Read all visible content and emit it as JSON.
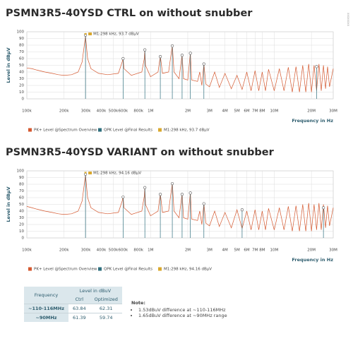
{
  "side_label": "xxxxxxxx",
  "chart_data": [
    {
      "type": "line",
      "title": "PSMN3R5-40YSD CTRL on without snubber",
      "x_label": "Frequency in Hz",
      "y_label": "Level in dBµV",
      "log_x": true,
      "grid": true,
      "xlim": [
        100000,
        30000000
      ],
      "xticks": [
        {
          "value": 100000,
          "label": "100k"
        },
        {
          "value": 200000,
          "label": "200k"
        },
        {
          "value": 300000,
          "label": "300k"
        },
        {
          "value": 400000,
          "label": "400k"
        },
        {
          "value": 500000,
          "label": "500k"
        },
        {
          "value": 600000,
          "label": "600k"
        },
        {
          "value": 800000,
          "label": "800k"
        },
        {
          "value": 1000000,
          "label": "1M"
        },
        {
          "value": 2000000,
          "label": "2M"
        },
        {
          "value": 3000000,
          "label": "3M"
        },
        {
          "value": 4000000,
          "label": "4M"
        },
        {
          "value": 5000000,
          "label": "5M"
        },
        {
          "value": 6000000,
          "label": "6M"
        },
        {
          "value": 7000000,
          "label": "7M"
        },
        {
          "value": 8000000,
          "label": "8M"
        },
        {
          "value": 10000000,
          "label": "10M"
        },
        {
          "value": 20000000,
          "label": "20M"
        },
        {
          "value": 30000000,
          "label": "30M"
        }
      ],
      "ylim": [
        0,
        100
      ],
      "yticks": [
        0,
        10,
        20,
        30,
        40,
        50,
        60,
        70,
        80,
        90,
        100
      ],
      "series": [
        {
          "name": "PK+ Level @Spectrum Overview",
          "color": "#d4582f",
          "kind": "line",
          "x": [
            100000,
            110000,
            120000,
            140000,
            160000,
            180000,
            200000,
            230000,
            260000,
            280000,
            298000,
            310000,
            330000,
            380000,
            450000,
            550000,
            590000,
            600000,
            610000,
            700000,
            850000,
            890000,
            900000,
            910000,
            1000000,
            1150000,
            1200000,
            1250000,
            1400000,
            1500000,
            1550000,
            1700000,
            1800000,
            1850000,
            2000000,
            2100000,
            2150000,
            2400000,
            2500000,
            2600000,
            2700000,
            2800000,
            3000000,
            3300000,
            3600000,
            4000000,
            4500000,
            5000000,
            5500000,
            6000000,
            6500000,
            7000000,
            7500000,
            8000000,
            8500000,
            9000000,
            10000000,
            11000000,
            12000000,
            13000000,
            14000000,
            15000000,
            16000000,
            17000000,
            18000000,
            19000000,
            20000000,
            21000000,
            22000000,
            23000000,
            24000000,
            25000000,
            26000000,
            27000000,
            28000000,
            30000000
          ],
          "values": [
            46,
            45,
            43,
            40,
            38,
            36,
            35,
            36,
            40,
            55,
            93.7,
            60,
            45,
            38,
            36,
            38,
            55,
            62,
            45,
            35,
            40,
            60,
            74,
            50,
            33,
            40,
            64,
            38,
            40,
            80,
            40,
            30,
            66,
            30,
            28,
            69,
            28,
            26,
            40,
            20,
            52,
            22,
            18,
            40,
            17,
            38,
            15,
            35,
            14,
            40,
            12,
            42,
            12,
            40,
            12,
            44,
            12,
            45,
            12,
            47,
            10,
            48,
            10,
            50,
            10,
            52,
            10,
            50,
            12,
            52,
            12,
            50,
            15,
            48,
            18,
            45
          ]
        },
        {
          "name": "QPK Level @Final Results",
          "color": "#2e6f7e",
          "kind": "points",
          "x": [
            298000,
            600000,
            900000,
            1200000,
            1500000,
            1800000,
            2100000,
            2700000,
            22000000
          ],
          "values": [
            95,
            60,
            73,
            63,
            79,
            65,
            68,
            52,
            48
          ]
        }
      ],
      "marker": {
        "label": "M1:298 kHz, 93.7 dBµV",
        "color": "#d9a82e",
        "x": 298000,
        "y": 93.7
      }
    },
    {
      "type": "line",
      "title": "PSMN3R5-40YSD VARIANT on without snubber",
      "x_label": "Frequency in Hz",
      "y_label": "Level in dBµV",
      "log_x": true,
      "grid": true,
      "xlim": [
        100000,
        30000000
      ],
      "xticks": [
        {
          "value": 100000,
          "label": "100k"
        },
        {
          "value": 200000,
          "label": "200k"
        },
        {
          "value": 300000,
          "label": "300k"
        },
        {
          "value": 400000,
          "label": "400k"
        },
        {
          "value": 500000,
          "label": "500k"
        },
        {
          "value": 600000,
          "label": "600k"
        },
        {
          "value": 800000,
          "label": "800k"
        },
        {
          "value": 1000000,
          "label": "1M"
        },
        {
          "value": 2000000,
          "label": "2M"
        },
        {
          "value": 3000000,
          "label": "3M"
        },
        {
          "value": 4000000,
          "label": "4M"
        },
        {
          "value": 5000000,
          "label": "5M"
        },
        {
          "value": 6000000,
          "label": "6M"
        },
        {
          "value": 7000000,
          "label": "7M"
        },
        {
          "value": 8000000,
          "label": "8M"
        },
        {
          "value": 10000000,
          "label": "10M"
        },
        {
          "value": 20000000,
          "label": "20M"
        },
        {
          "value": 30000000,
          "label": "30M"
        }
      ],
      "ylim": [
        0,
        100
      ],
      "yticks": [
        0,
        10,
        20,
        30,
        40,
        50,
        60,
        70,
        80,
        90,
        100
      ],
      "series": [
        {
          "name": "PK+ Level @Spectrum Overview",
          "color": "#d4582f",
          "kind": "line",
          "x": [
            100000,
            110000,
            120000,
            140000,
            160000,
            180000,
            200000,
            230000,
            260000,
            280000,
            298000,
            310000,
            330000,
            380000,
            450000,
            550000,
            590000,
            600000,
            610000,
            700000,
            850000,
            890000,
            900000,
            910000,
            1000000,
            1150000,
            1200000,
            1250000,
            1400000,
            1500000,
            1550000,
            1700000,
            1800000,
            1850000,
            2000000,
            2100000,
            2150000,
            2400000,
            2500000,
            2600000,
            2700000,
            2800000,
            3000000,
            3300000,
            3600000,
            4000000,
            4500000,
            5000000,
            5500000,
            6000000,
            6500000,
            7000000,
            7500000,
            8000000,
            8500000,
            9000000,
            10000000,
            11000000,
            12000000,
            13000000,
            14000000,
            15000000,
            16000000,
            17000000,
            18000000,
            19000000,
            20000000,
            21000000,
            22000000,
            23000000,
            24000000,
            25000000,
            26000000,
            27000000,
            28000000,
            30000000
          ],
          "values": [
            47,
            45,
            43,
            40,
            38,
            36,
            35,
            36,
            40,
            55,
            94.16,
            60,
            45,
            38,
            36,
            38,
            55,
            62,
            45,
            35,
            40,
            62,
            76,
            50,
            33,
            40,
            66,
            38,
            40,
            82,
            40,
            30,
            66,
            30,
            28,
            68,
            28,
            26,
            40,
            20,
            51,
            22,
            18,
            40,
            17,
            38,
            15,
            42,
            14,
            40,
            12,
            42,
            12,
            40,
            12,
            44,
            12,
            45,
            12,
            47,
            10,
            48,
            10,
            50,
            10,
            52,
            10,
            50,
            12,
            52,
            12,
            50,
            15,
            48,
            18,
            45
          ]
        },
        {
          "name": "QPK Level @Final Results",
          "color": "#2e6f7e",
          "kind": "points",
          "x": [
            298000,
            600000,
            900000,
            1200000,
            1500000,
            1800000,
            2100000,
            2700000,
            5500000,
            25000000
          ],
          "values": [
            95,
            61,
            75,
            65,
            81,
            65,
            67,
            51,
            42,
            45
          ]
        }
      ],
      "marker": {
        "label": "M1:298 kHz, 94.16 dBµV",
        "color": "#d9a82e",
        "x": 298000,
        "y": 94.16
      }
    }
  ],
  "table": {
    "header": [
      "Frequency",
      "Level in dBuV"
    ],
    "subheader": [
      "Ctrl",
      "Optimized"
    ],
    "rows": [
      [
        "~110-116MHz",
        "63.84",
        "62.31"
      ],
      [
        "~90MHz",
        "61.39",
        "59.74"
      ]
    ]
  },
  "note": {
    "title": "Note:",
    "items": [
      "1.53dBuV difference at ~110-116MHz",
      "1.65dBuV difference at ~90MHz range"
    ]
  }
}
